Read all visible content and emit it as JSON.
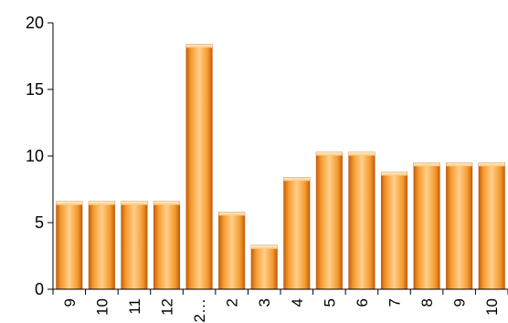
{
  "chart_data": {
    "type": "bar",
    "title": "",
    "xlabel": "",
    "ylabel": "",
    "ylim": [
      0,
      20
    ],
    "yticks": [
      0,
      5,
      10,
      15,
      20
    ],
    "grid": false,
    "legend": "none",
    "categories": [
      "9",
      "10",
      "11",
      "12",
      "2…",
      "2",
      "3",
      "4",
      "5",
      "6",
      "7",
      "8",
      "9",
      "10"
    ],
    "values": [
      6.6,
      6.6,
      6.6,
      6.6,
      18.4,
      5.8,
      3.3,
      8.4,
      10.3,
      10.3,
      8.8,
      9.5,
      9.5,
      9.5
    ],
    "colors": {
      "bar_light": "#ffd7a0",
      "bar_mid": "#f59a2f",
      "bar_dark": "#c85f0c",
      "axis": "#000000"
    }
  }
}
